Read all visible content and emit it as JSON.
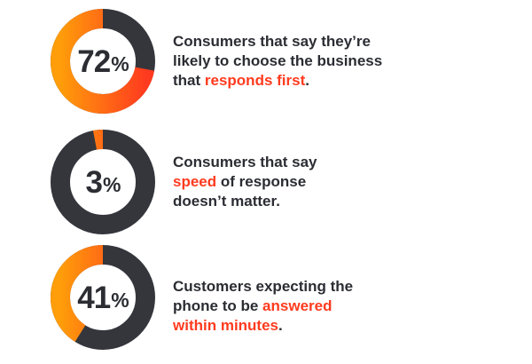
{
  "colors": {
    "ring_track": "#34363c",
    "gradient_start": "#ff3b1f",
    "gradient_end": "#ff9d0a",
    "text": "#2b2d33",
    "highlight": "#ff3b1f"
  },
  "chart_data": [
    {
      "type": "pie",
      "values": [
        72,
        28
      ],
      "label_value": "72",
      "label_unit": "%",
      "caption": {
        "line1": "Consumers that say they’re",
        "line2": "likely to choose the business",
        "line3_prefix": "that ",
        "line3_highlight": "responds first",
        "line3_suffix": "."
      }
    },
    {
      "type": "pie",
      "values": [
        3,
        97
      ],
      "label_value": "3",
      "label_unit": "%",
      "caption": {
        "line1": "Consumers that say",
        "line2_highlight": "speed",
        "line2_suffix": " of response",
        "line3": "doesn’t matter."
      }
    },
    {
      "type": "pie",
      "values": [
        41,
        59
      ],
      "label_value": "41",
      "label_unit": "%",
      "caption": {
        "line1": "Customers expecting the",
        "line2_prefix": "phone to be ",
        "line2_highlight": "answered",
        "line3_highlight": "within minutes",
        "line3_suffix": "."
      }
    }
  ]
}
